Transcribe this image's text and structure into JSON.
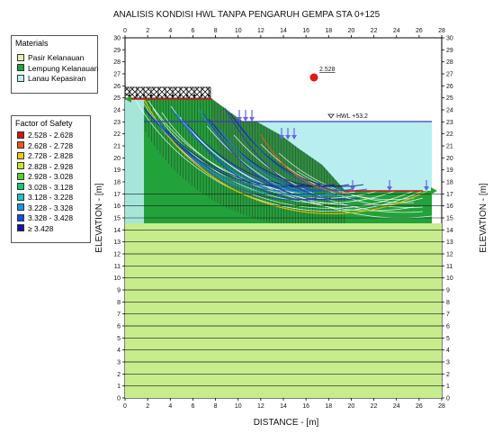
{
  "title": "ANALISIS KONDISI HWL TANPA PENGARUH GEMPA STA 0+125",
  "x_axis_label": "DISTANCE - [m]",
  "y_axis_label": "ELEVATION - [m]",
  "x_ticks": [
    0,
    2,
    4,
    6,
    8,
    10,
    12,
    14,
    16,
    18,
    20,
    22,
    24,
    26,
    28
  ],
  "y_ticks": [
    0,
    1,
    2,
    3,
    4,
    5,
    6,
    7,
    8,
    9,
    10,
    11,
    12,
    13,
    14,
    15,
    16,
    17,
    18,
    19,
    20,
    21,
    22,
    23,
    24,
    25,
    26,
    27,
    28,
    29,
    30
  ],
  "materials_legend": {
    "title": "Materials",
    "items": [
      {
        "label": "Pasir Kelanauan",
        "color": "#dff0b8"
      },
      {
        "label": "Lempung Kelanauan",
        "color": "#22a23a"
      },
      {
        "label": "Lanau Kepasiran",
        "color": "#b9f2ef"
      }
    ]
  },
  "fos_legend": {
    "title": "Factor of Safety",
    "items": [
      {
        "label": "2.528 - 2.628",
        "color": "#c81414"
      },
      {
        "label": "2.628 - 2.728",
        "color": "#e85a14"
      },
      {
        "label": "2.728 - 2.828",
        "color": "#f0c814"
      },
      {
        "label": "2.828 - 2.928",
        "color": "#c8e628"
      },
      {
        "label": "2.928 - 3.028",
        "color": "#5ad228"
      },
      {
        "label": "3.028 - 3.128",
        "color": "#14c878"
      },
      {
        "label": "3.128 - 3.228",
        "color": "#14c8c8"
      },
      {
        "label": "3.228 - 3.328",
        "color": "#1496e6"
      },
      {
        "label": "3.328 - 3.428",
        "color": "#1450e6"
      },
      {
        "label": "≥ 3.428",
        "color": "#1414a0"
      }
    ]
  },
  "min_fos_label": "2.528",
  "water_label": "HWL +53.2",
  "colors": {
    "lower_layer": "#c6ec8c",
    "water": "#b9eef0",
    "clay": "#22a23a",
    "phreatic_line": "#3a3ab4",
    "load_arrow": "#6464e6",
    "slip_surface": "#ffffff",
    "critical_center": "#e01818"
  }
}
